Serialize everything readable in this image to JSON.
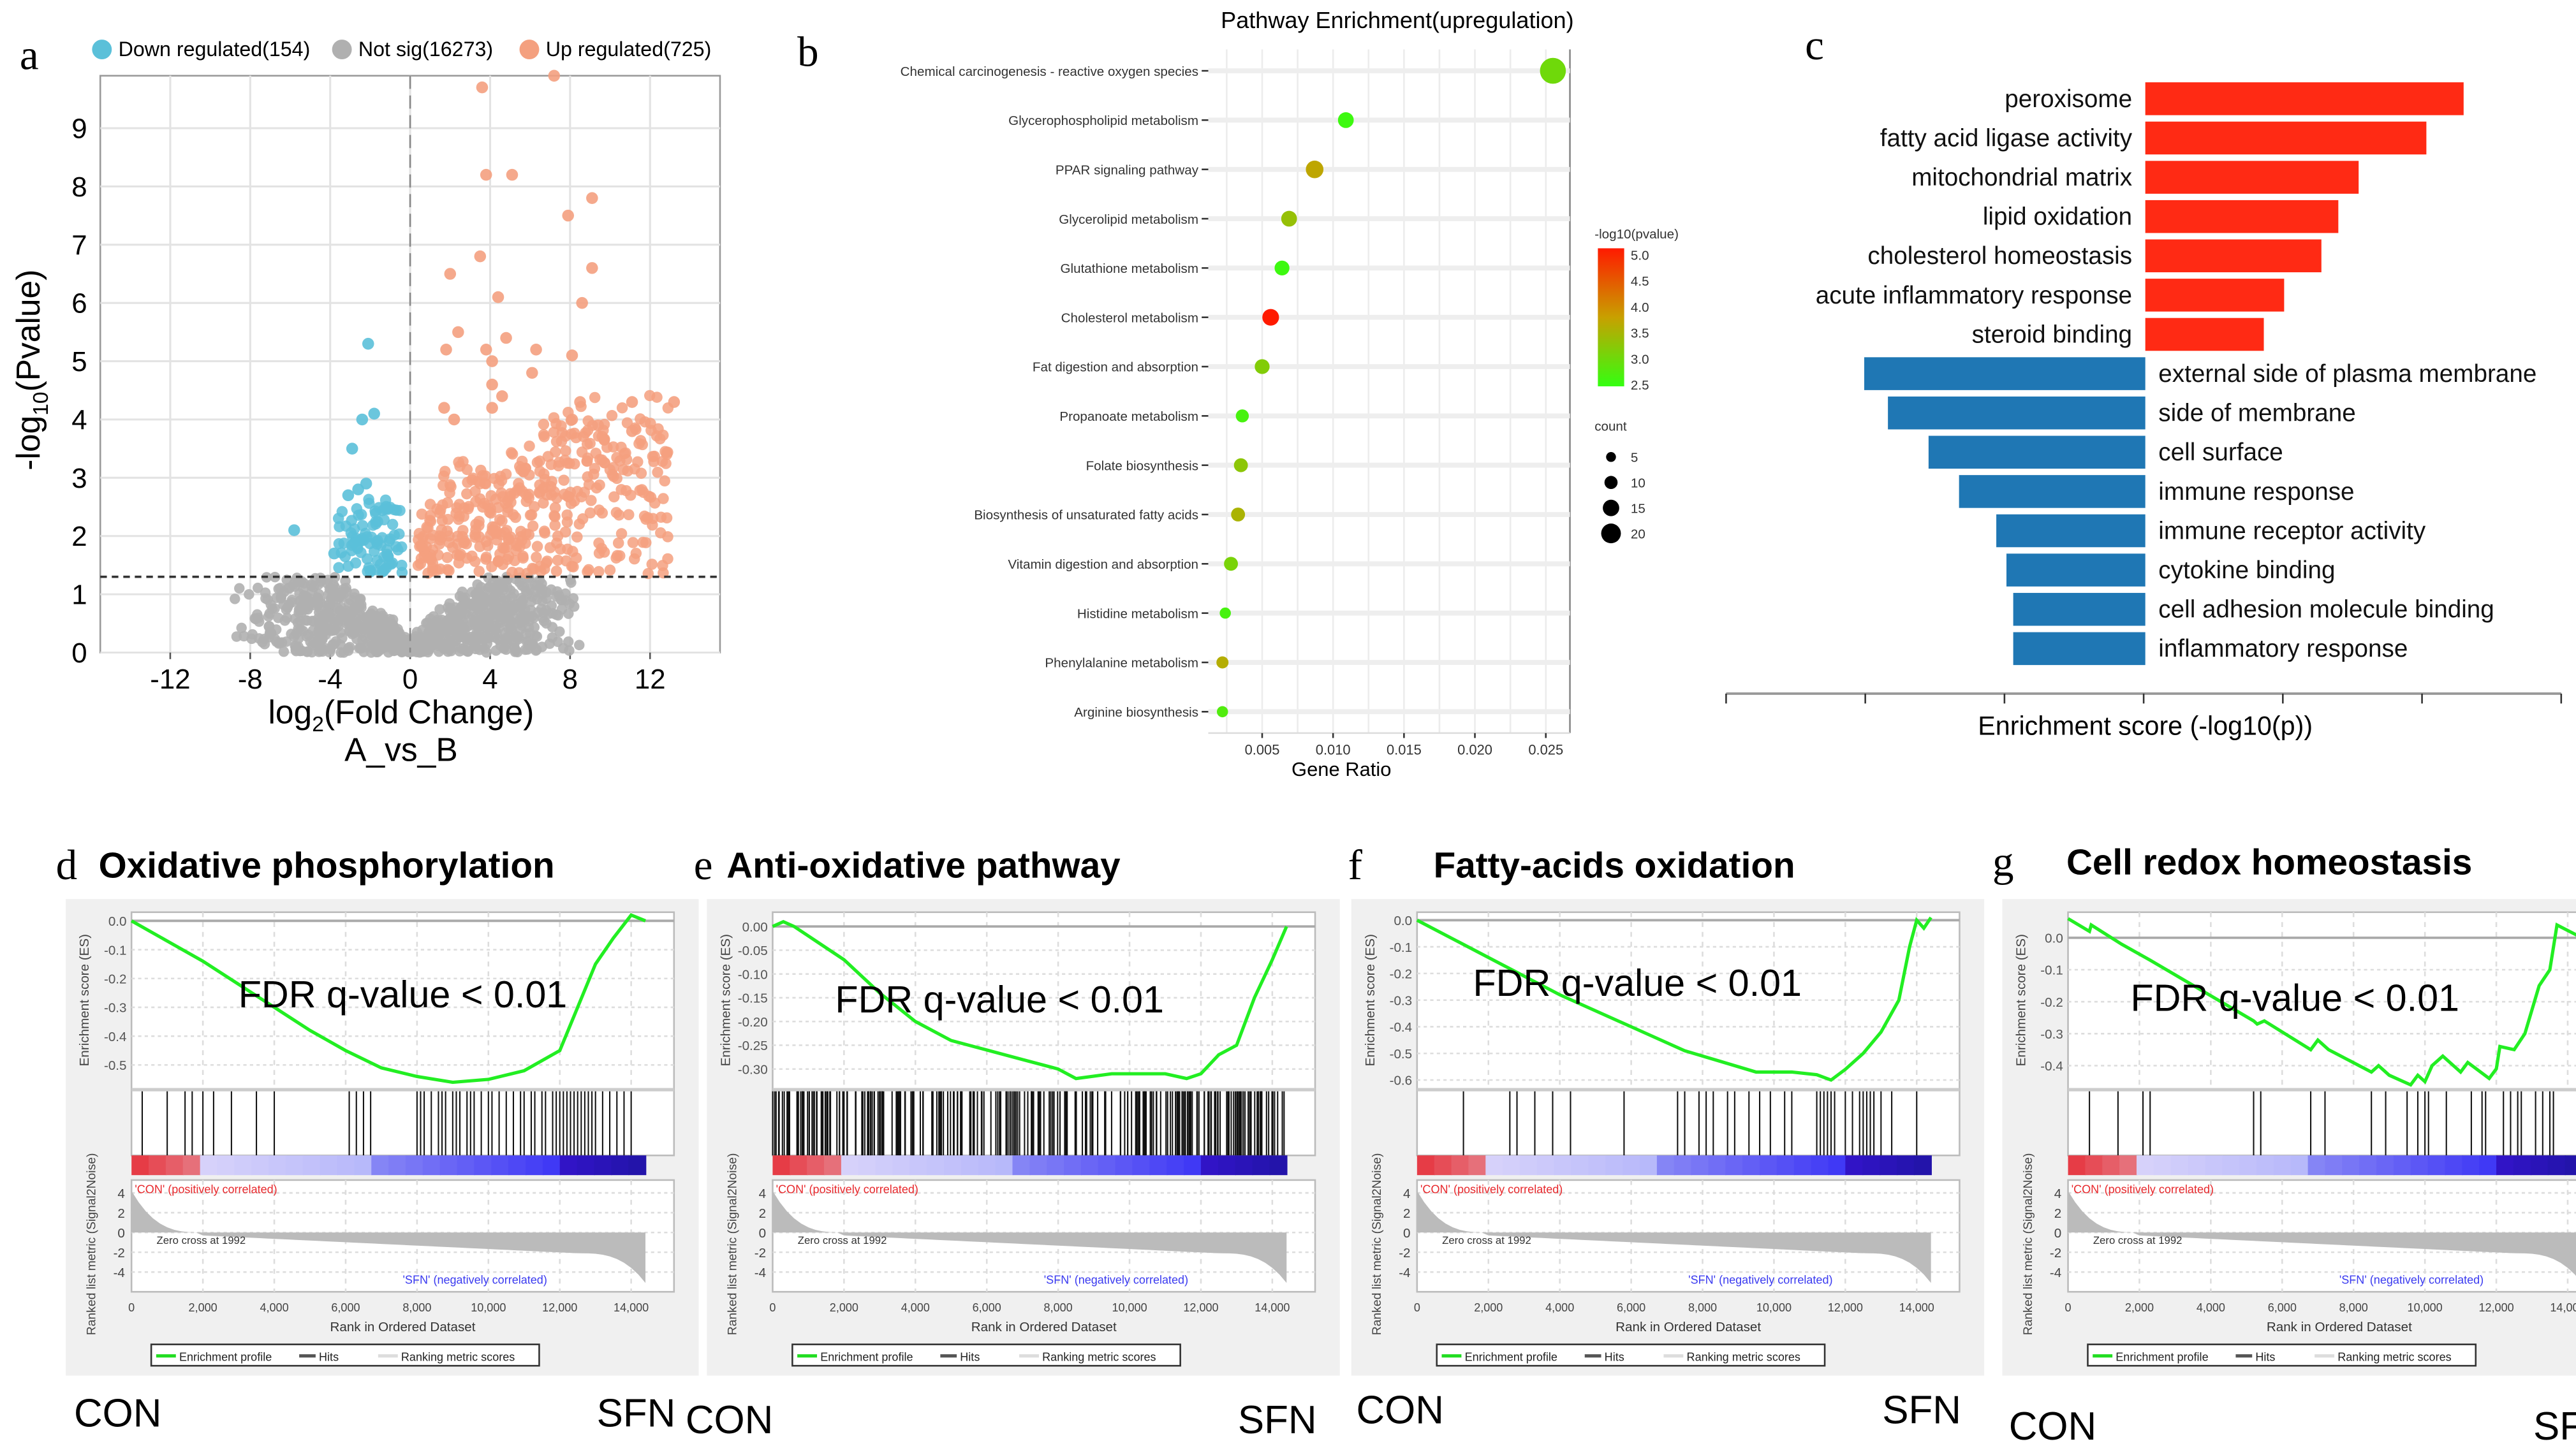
{
  "chart_data": [
    {
      "panel": "a",
      "type": "scatter",
      "title": "",
      "legend": [
        {
          "label": "Down regulated(154)",
          "color": "#5bc0d9"
        },
        {
          "label": "Not sig(16273)",
          "color": "#b0b0b0"
        },
        {
          "label": "Up regulated(725)",
          "color": "#f4a07f"
        }
      ],
      "legend_placement": "top",
      "xlabel": "log2(Fold Change)",
      "xlabel_parts": {
        "base": "log",
        "sub": "2",
        "rest": "(Fold Change)"
      },
      "subtitle": "A_vs_B",
      "ylabel": "-log10(Pvalue)",
      "ylabel_parts": {
        "base": "-log",
        "sub": "10",
        "rest": "(Pvalue)"
      },
      "xlim": [
        -15.5,
        15.5
      ],
      "ylim": [
        0,
        9.9
      ],
      "xticks": [
        -12,
        -8,
        -4,
        0,
        4,
        8,
        12
      ],
      "yticks": [
        0,
        1,
        2,
        3,
        4,
        5,
        6,
        7,
        8,
        9
      ],
      "threshold_y": 1.3,
      "vline_x": 0,
      "grid": true,
      "highlight_points": {
        "down": [
          [
            -2.1,
            5.3
          ],
          [
            -2.4,
            4.0
          ],
          [
            -1.8,
            4.1
          ],
          [
            -2.9,
            3.5
          ],
          [
            -5.8,
            2.1
          ],
          [
            -3.8,
            1.7
          ],
          [
            -2.6,
            2.8
          ],
          [
            -2.2,
            2.9
          ],
          [
            -3.1,
            2.7
          ],
          [
            -1.2,
            2.5
          ]
        ],
        "up": [
          [
            3.6,
            9.7
          ],
          [
            7.2,
            9.9
          ],
          [
            3.8,
            8.2
          ],
          [
            5.1,
            8.2
          ],
          [
            9.1,
            7.8
          ],
          [
            7.9,
            7.5
          ],
          [
            3.5,
            6.8
          ],
          [
            2.0,
            6.5
          ],
          [
            9.1,
            6.6
          ],
          [
            4.4,
            6.1
          ],
          [
            8.6,
            6.0
          ],
          [
            2.4,
            5.5
          ],
          [
            4.8,
            5.4
          ],
          [
            1.8,
            5.2
          ],
          [
            3.8,
            5.2
          ],
          [
            6.3,
            5.2
          ],
          [
            4.1,
            5.0
          ],
          [
            8.1,
            5.1
          ],
          [
            6.1,
            4.8
          ],
          [
            4.1,
            4.6
          ],
          [
            4.6,
            4.4
          ],
          [
            8.5,
            4.3
          ],
          [
            11.1,
            4.3
          ],
          [
            13.2,
            4.3
          ],
          [
            1.7,
            4.2
          ],
          [
            4.1,
            4.2
          ],
          [
            2.2,
            4.0
          ],
          [
            8.1,
            4.0
          ],
          [
            9.4,
            3.9
          ],
          [
            11.1,
            3.8
          ]
        ]
      },
      "cloud_description": "dense clusters: not-sig grey near origin, up-regulated salmon for x>0 & y>1.3, down-regulated blue for x<0 & y>1.3"
    },
    {
      "panel": "b",
      "type": "scatter",
      "title": "Pathway Enrichment(upregulation)",
      "xlabel": "Gene Ratio",
      "ylabel": "",
      "xlim": [
        0.0012,
        0.0267
      ],
      "xticks": [
        "0.005",
        "0.010",
        "0.015",
        "0.020",
        "0.025"
      ],
      "xtick_values": [
        0.005,
        0.01,
        0.015,
        0.02,
        0.025
      ],
      "grid": true,
      "color_legend": {
        "title": "-log10(pvalue)",
        "ticks": [
          "5.0",
          "4.5",
          "4.0",
          "3.5",
          "3.0",
          "2.5"
        ],
        "range": [
          2.5,
          5.0
        ],
        "low_color": "#33ff11",
        "mid_color": "#c8a000",
        "high_color": "#ff1a00"
      },
      "size_legend": {
        "title": "count",
        "values": [
          5,
          10,
          15,
          20
        ]
      },
      "legend_placement": "right",
      "categories": [
        "Chemical carcinogenesis - reactive oxygen species",
        "Glycerophospholipid metabolism",
        "PPAR signaling pathway",
        "Glycerolipid metabolism",
        "Glutathione metabolism",
        "Cholesterol metabolism",
        "Fat digestion and absorption",
        "Propanoate metabolism",
        "Folate biosynthesis",
        "Biosynthesis of unsaturated fatty acids",
        "Vitamin digestion and absorption",
        "Histidine metabolism",
        "Phenylalanine metabolism",
        "Arginine biosynthesis"
      ],
      "gene_ratio": [
        0.0255,
        0.0109,
        0.0087,
        0.0069,
        0.0064,
        0.0056,
        0.005,
        0.0036,
        0.0035,
        0.0033,
        0.0028,
        0.0024,
        0.0022,
        0.0022
      ],
      "neg_log10_p": [
        3.1,
        2.6,
        3.9,
        3.5,
        2.6,
        5.0,
        3.3,
        2.7,
        3.4,
        3.7,
        3.2,
        2.7,
        3.8,
        2.8
      ],
      "count": [
        21,
        10,
        12,
        10,
        9,
        11,
        9,
        7,
        8,
        8,
        8,
        5,
        6,
        5
      ]
    },
    {
      "panel": "c",
      "type": "bar",
      "orientation": "horizontal",
      "xlabel": "Enrichment score (-log10(p))",
      "ylabel": "",
      "categories_up": [
        "peroxisome",
        "fatty acid ligase activity",
        "mitochondrial matrix",
        "lipid oxidation",
        "cholesterol homeostasis",
        "acute inflammatory response",
        "steroid binding"
      ],
      "values_up": [
        9.4,
        8.3,
        6.3,
        5.7,
        5.2,
        4.1,
        3.5
      ],
      "up_color": "#ff2a14",
      "categories_down": [
        "external side of plasma membrane",
        "side of membrane",
        "cell surface",
        "immune response",
        "immune receptor activity",
        "cytokine binding",
        "cell adhesion molecule binding",
        "inflammatory response"
      ],
      "values_down": [
        -8.3,
        -7.6,
        -6.4,
        -5.5,
        -4.4,
        -4.1,
        -3.9,
        -3.9
      ],
      "down_color": "#1f77b4",
      "xlim": [
        -12,
        12
      ],
      "tick_count": 7,
      "grid": false
    },
    {
      "panel": "d",
      "type": "line",
      "title": "Oxidative phosphorylation",
      "annotation": "FDR q-value < 0.01",
      "ylabel": "Enrichment score (ES)",
      "yticks": [
        "0.0",
        "-0.1",
        "-0.2",
        "-0.3",
        "-0.4",
        "-0.5"
      ],
      "ylim": [
        -0.58,
        0.03
      ],
      "es_curve": [
        [
          0,
          0
        ],
        [
          1000,
          -0.07
        ],
        [
          2000,
          -0.14
        ],
        [
          3000,
          -0.22
        ],
        [
          4000,
          -0.3
        ],
        [
          5000,
          -0.38
        ],
        [
          6000,
          -0.45
        ],
        [
          7000,
          -0.51
        ],
        [
          8000,
          -0.54
        ],
        [
          9000,
          -0.56
        ],
        [
          10000,
          -0.55
        ],
        [
          11000,
          -0.52
        ],
        [
          12000,
          -0.45
        ],
        [
          12500,
          -0.3
        ],
        [
          13000,
          -0.15
        ],
        [
          13500,
          -0.06
        ],
        [
          14000,
          0.02
        ],
        [
          14400,
          0.0
        ]
      ],
      "hits_density": "sparse-left, dense-right",
      "hit_positions": [
        300,
        1000,
        1500,
        1700,
        2000,
        2300,
        2800,
        3500,
        4000,
        6100,
        6300,
        6500,
        6700,
        8000,
        8100,
        8200,
        8400,
        8600,
        8700,
        8800,
        9000,
        9100,
        9200,
        9400,
        9500,
        9600,
        9800,
        10000,
        10100,
        10300,
        10500,
        10700,
        10900,
        11000,
        11200,
        11300,
        11500,
        11600,
        11800,
        11900,
        12000,
        12100,
        12200,
        12300,
        12400,
        12500,
        12600,
        12700,
        12800,
        12900,
        13000,
        13200,
        13400,
        13600,
        13800,
        14000
      ]
    },
    {
      "panel": "e",
      "type": "line",
      "title": "Anti-oxidative pathway",
      "annotation": "FDR q-value < 0.01",
      "ylabel": "Enrichment score (ES)",
      "yticks": [
        "0.00",
        "-0.05",
        "-0.10",
        "-0.15",
        "-0.20",
        "-0.25",
        "-0.30"
      ],
      "ylim": [
        -0.34,
        0.03
      ],
      "es_curve": [
        [
          0,
          0
        ],
        [
          300,
          0.01
        ],
        [
          600,
          0.0
        ],
        [
          1000,
          -0.02
        ],
        [
          2000,
          -0.07
        ],
        [
          3000,
          -0.14
        ],
        [
          4000,
          -0.2
        ],
        [
          5000,
          -0.24
        ],
        [
          6000,
          -0.26
        ],
        [
          7000,
          -0.28
        ],
        [
          8000,
          -0.3
        ],
        [
          8500,
          -0.32
        ],
        [
          9500,
          -0.31
        ],
        [
          11000,
          -0.31
        ],
        [
          11600,
          -0.32
        ],
        [
          12000,
          -0.31
        ],
        [
          12500,
          -0.27
        ],
        [
          13000,
          -0.25
        ],
        [
          13500,
          -0.15
        ],
        [
          14000,
          -0.07
        ],
        [
          14400,
          0.0
        ]
      ],
      "hits_density": "dense-throughout"
    },
    {
      "panel": "f",
      "type": "line",
      "title": "Fatty-acids oxidation",
      "annotation": "FDR q-value < 0.01",
      "ylabel": "Enrichment score (ES)",
      "yticks": [
        "0.0",
        "-0.1",
        "-0.2",
        "-0.3",
        "-0.4",
        "-0.5",
        "-0.6"
      ],
      "ylim": [
        -0.63,
        0.03
      ],
      "es_curve": [
        [
          0,
          0
        ],
        [
          2000,
          -0.14
        ],
        [
          4000,
          -0.28
        ],
        [
          6000,
          -0.4
        ],
        [
          7500,
          -0.49
        ],
        [
          8500,
          -0.53
        ],
        [
          9500,
          -0.57
        ],
        [
          10500,
          -0.57
        ],
        [
          11200,
          -0.58
        ],
        [
          11600,
          -0.6
        ],
        [
          12000,
          -0.56
        ],
        [
          12500,
          -0.5
        ],
        [
          13000,
          -0.42
        ],
        [
          13500,
          -0.3
        ],
        [
          13800,
          -0.1
        ],
        [
          14000,
          0.0
        ],
        [
          14200,
          -0.03
        ],
        [
          14400,
          0.01
        ]
      ],
      "hit_positions": [
        1300,
        2600,
        2800,
        3300,
        3800,
        4300,
        5800,
        7300,
        7500,
        7900,
        8100,
        8300,
        8700,
        8900,
        9300,
        9600,
        9900,
        10300,
        10500,
        11200,
        11300,
        11400,
        11500,
        11600,
        11700,
        12000,
        12200,
        12400,
        12500,
        12600,
        12700,
        12800,
        13000,
        13300,
        14000
      ]
    },
    {
      "panel": "g",
      "type": "line",
      "title": "Cell redox homeostasis",
      "annotation": "FDR q-value < 0.01",
      "ylabel": "Enrichment score (ES)",
      "yticks": [
        "0.0",
        "-0.1",
        "-0.2",
        "-0.3",
        "-0.4"
      ],
      "ylim": [
        -0.47,
        0.08
      ],
      "es_curve": [
        [
          0,
          0.06
        ],
        [
          600,
          0.02
        ],
        [
          650,
          0.04
        ],
        [
          1500,
          -0.02
        ],
        [
          2300,
          -0.07
        ],
        [
          5200,
          -0.26
        ],
        [
          5300,
          -0.27
        ],
        [
          5500,
          -0.26
        ],
        [
          6800,
          -0.35
        ],
        [
          7000,
          -0.32
        ],
        [
          7300,
          -0.35
        ],
        [
          8500,
          -0.42
        ],
        [
          8700,
          -0.4
        ],
        [
          9000,
          -0.43
        ],
        [
          9600,
          -0.46
        ],
        [
          9800,
          -0.43
        ],
        [
          10000,
          -0.45
        ],
        [
          10200,
          -0.4
        ],
        [
          10500,
          -0.37
        ],
        [
          11000,
          -0.42
        ],
        [
          11200,
          -0.39
        ],
        [
          11800,
          -0.44
        ],
        [
          12000,
          -0.41
        ],
        [
          12100,
          -0.34
        ],
        [
          12500,
          -0.35
        ],
        [
          12800,
          -0.3
        ],
        [
          13200,
          -0.15
        ],
        [
          13500,
          -0.1
        ],
        [
          13700,
          0.04
        ],
        [
          14400,
          0.0
        ]
      ],
      "hit_positions": [
        600,
        1400,
        2100,
        2300,
        5200,
        5400,
        6800,
        7200,
        8500,
        8900,
        9500,
        9800,
        10000,
        10100,
        10600,
        11300,
        11600,
        11700,
        12200,
        12400,
        12600,
        12700,
        13100,
        13300,
        13500,
        13600
      ]
    }
  ],
  "gsea_common": {
    "xlabel": "Rank in Ordered Dataset",
    "xticks": [
      "0",
      "2,000",
      "4,000",
      "6,000",
      "8,000",
      "10,000",
      "12,000",
      "14,000"
    ],
    "xlim": [
      0,
      15200
    ],
    "metric_ylabel": "Ranked list metric (Signal2Noise)",
    "metric_yticks": [
      "4",
      "2",
      "0",
      "-2",
      "-4"
    ],
    "metric_ylim": [
      -5.5,
      4.8
    ],
    "zero_cross_label": "Zero cross at 1992",
    "pos_label": "'CON' (positively correlated)",
    "neg_label": "'SFN' (negatively correlated)",
    "pos_color": "#e8282c",
    "neg_color": "#3a3af0",
    "legend": [
      {
        "label": "Enrichment profile",
        "color": "#22dd22"
      },
      {
        "label": "Hits",
        "color": "#555555"
      },
      {
        "label": "Ranking metric scores",
        "color": "#dddddd"
      }
    ],
    "group_left": "CON",
    "group_right": "SFN"
  },
  "panel_letters": {
    "a": "a",
    "b": "b",
    "c": "c",
    "d": "d",
    "e": "e",
    "f": "f",
    "g": "g"
  }
}
